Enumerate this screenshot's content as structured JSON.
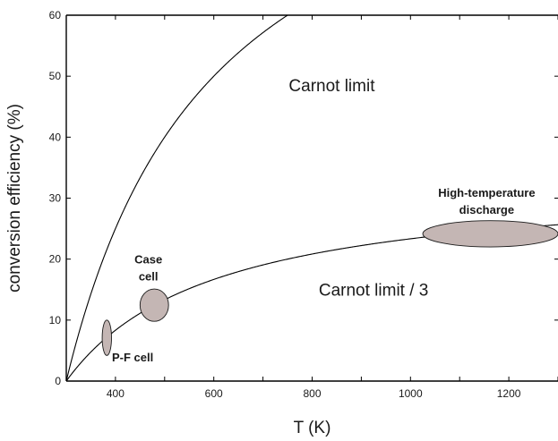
{
  "chart_data": {
    "type": "line",
    "xlabel": "T (K)",
    "ylabel": "conversion efficiency (%)",
    "xlim": [
      300,
      1300
    ],
    "ylim": [
      0,
      60
    ],
    "x_ticks": [
      400,
      600,
      800,
      1000,
      1200
    ],
    "y_ticks": [
      0,
      10,
      20,
      30,
      40,
      50,
      60
    ],
    "T_cold": 300,
    "series": [
      {
        "function": "carnot",
        "divisor": 1
      },
      {
        "function": "carnot",
        "divisor": 3
      }
    ],
    "annotations": [
      {
        "text": "Carnot limit",
        "x": 840,
        "y": 47.5
      },
      {
        "text": "Carnot limit / 3",
        "x": 925,
        "y": 14
      }
    ],
    "regions": [
      {
        "name": "P-F cell",
        "label_lines": [
          "P-F cell"
        ],
        "x_range": [
          373,
          392
        ],
        "y_range": [
          4.2,
          10.0
        ],
        "label_x": 435,
        "label_y": 3.2,
        "color": "#c4b6b4"
      },
      {
        "name": "Case cell",
        "label_lines": [
          "Case",
          "cell"
        ],
        "x_range": [
          450,
          508
        ],
        "y_range": [
          9.8,
          15.1
        ],
        "label_x": 467,
        "label_y": 19.3,
        "color": "#c4b6b4"
      },
      {
        "name": "High-temperature discharge",
        "label_lines": [
          "High-temperature",
          "discharge"
        ],
        "x_range": [
          1025,
          1300
        ],
        "y_range": [
          22.0,
          26.3
        ],
        "label_x": 1155,
        "label_y": 30.2,
        "color": "#c4b6b4"
      }
    ],
    "grid": false
  }
}
